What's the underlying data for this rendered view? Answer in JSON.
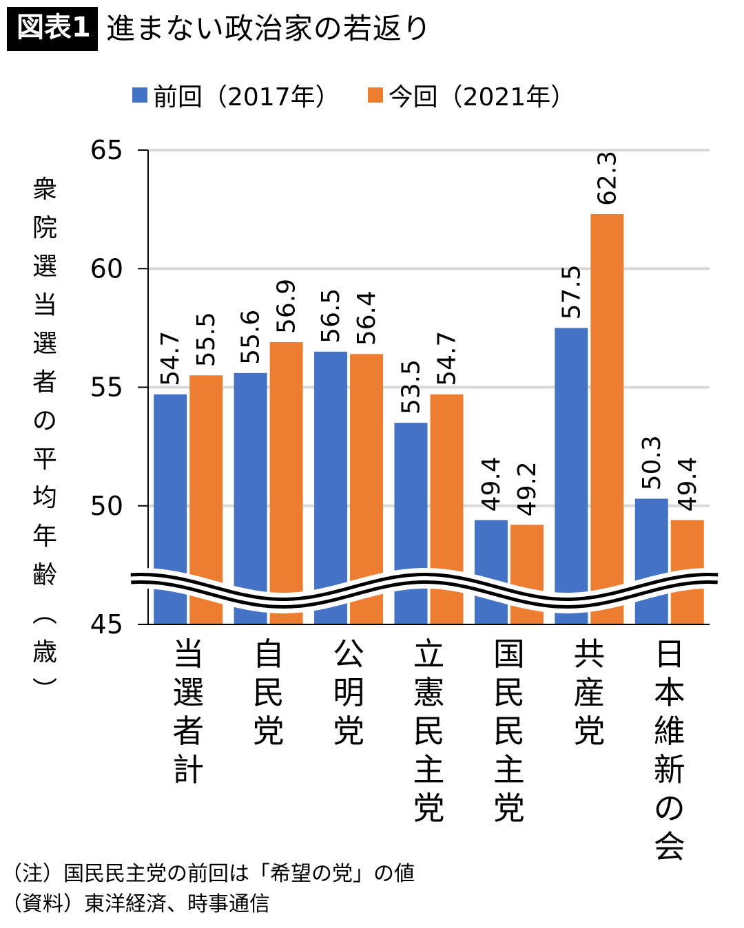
{
  "header": {
    "badge": "図表1",
    "title": "進まない政治家の若返り"
  },
  "chart_data": {
    "type": "bar",
    "title": "進まない政治家の若返り",
    "ylabel": "衆院選当選者の平均年齢（歳）",
    "xlabel": "",
    "ylim": [
      45,
      65
    ],
    "yticks": [
      45,
      50,
      55,
      60,
      65
    ],
    "grid": true,
    "axis_break": true,
    "legend_position": "top",
    "categories": [
      "当選者計",
      "自民党",
      "公明党",
      "立憲民主党",
      "国民民主党",
      "共産党",
      "日本維新の会"
    ],
    "series": [
      {
        "name": "前回（2017年）",
        "color": "#4472C4",
        "values": [
          54.7,
          55.6,
          56.5,
          53.5,
          49.4,
          57.5,
          50.3
        ]
      },
      {
        "name": "今回（2021年）",
        "color": "#ED7D31",
        "values": [
          55.5,
          56.9,
          56.4,
          54.7,
          49.2,
          62.3,
          49.4
        ]
      }
    ]
  },
  "notes": [
    "（注）国民民主党の前回は「希望の党」の値",
    "（資料）東洋経済、時事通信"
  ]
}
